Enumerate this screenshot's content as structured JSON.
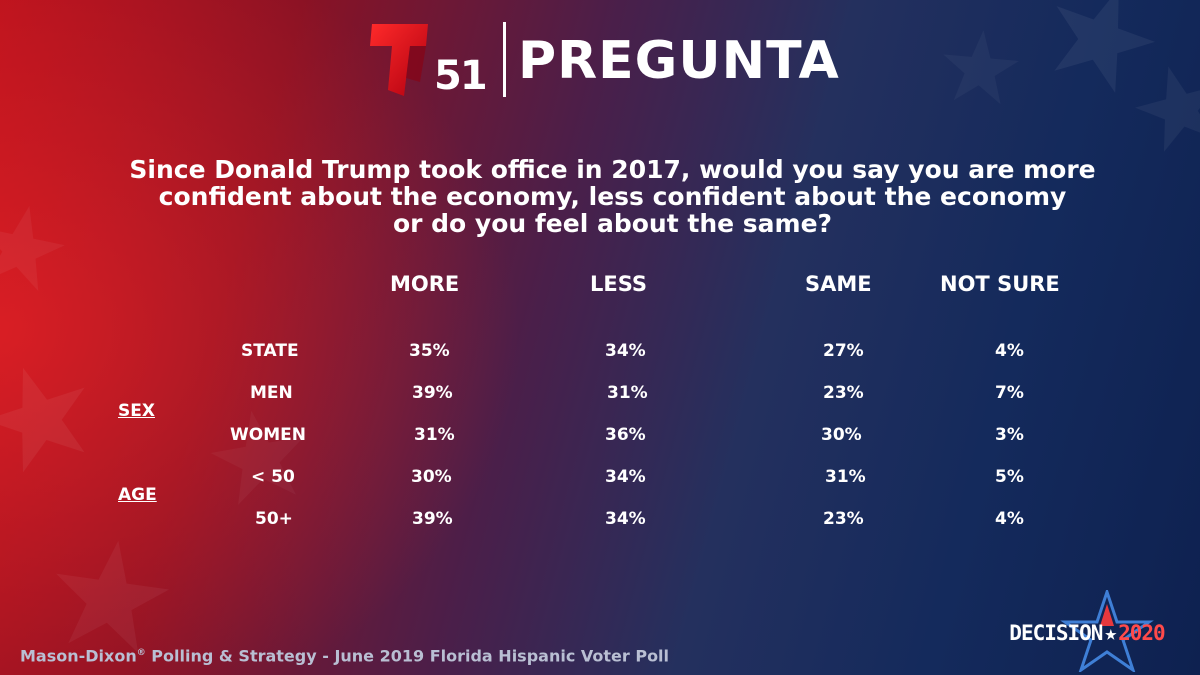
{
  "header": {
    "logo_number": "51",
    "title": "PREGUNTA"
  },
  "question": {
    "lines": [
      "Since Donald Trump took office in 2017, would you say you are more",
      "confident about the economy, less confident about the economy",
      "or do you feel about the same?"
    ]
  },
  "chart_data": {
    "type": "table",
    "columns": [
      "MORE",
      "LESS",
      "SAME",
      "NOT SURE"
    ],
    "groups": [
      {
        "label": "",
        "rows": [
          "STATE"
        ]
      },
      {
        "label": "SEX",
        "rows": [
          "MEN",
          "WOMEN"
        ]
      },
      {
        "label": "AGE",
        "rows": [
          "< 50",
          "50+"
        ]
      }
    ],
    "rows": [
      {
        "label": "STATE",
        "values": [
          "35%",
          "34%",
          "27%",
          "4%"
        ]
      },
      {
        "label": "MEN",
        "values": [
          "39%",
          "31%",
          "23%",
          "7%"
        ]
      },
      {
        "label": "WOMEN",
        "values": [
          "31%",
          "36%",
          "30%",
          "3%"
        ]
      },
      {
        "label": "< 50",
        "values": [
          "30%",
          "34%",
          "31%",
          "5%"
        ]
      },
      {
        "label": "50+",
        "values": [
          "39%",
          "34%",
          "23%",
          "4%"
        ]
      }
    ]
  },
  "footer": {
    "source_prefix": "Mason-Dixon",
    "source_mark": "®",
    "source_suffix": " Polling & Strategy - June 2019 Florida Hispanic Voter Poll"
  },
  "badge": {
    "word": "DECISION",
    "separator": "★",
    "year": "2020"
  },
  "colors": {
    "logo_red": "#e4101c",
    "accent_red": "#ff4a4a",
    "star_blue": "#3f7fd6"
  }
}
